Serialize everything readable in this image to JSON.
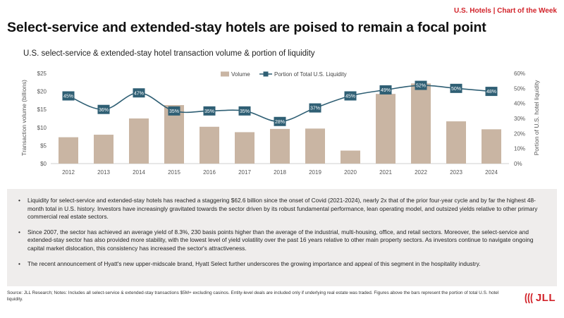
{
  "header": {
    "tagline": "U.S. Hotels | Chart of the Week",
    "title": "Select-service and extended-stay hotels are poised to remain a focal point"
  },
  "chart_data": {
    "type": "bar",
    "title": "U.S. select-service & extended-stay hotel transaction volume & portion of liquidity",
    "categories": [
      "2012",
      "2013",
      "2014",
      "2015",
      "2016",
      "2017",
      "2018",
      "2019",
      "2020",
      "2021",
      "2022",
      "2023",
      "2024"
    ],
    "series": [
      {
        "name": "Volume",
        "type": "bar",
        "axis": "left",
        "values": [
          7.3,
          8.0,
          12.5,
          16.2,
          10.2,
          8.7,
          9.6,
          9.7,
          3.6,
          19.3,
          22.2,
          11.7,
          9.5
        ]
      },
      {
        "name": "Portion of Total U.S. Liquidity",
        "type": "line",
        "axis": "right",
        "values": [
          45,
          36,
          47,
          35,
          35,
          35,
          28,
          37,
          45,
          49,
          52,
          50,
          48
        ],
        "labels": [
          "45%",
          "36%",
          "47%",
          "35%",
          "35%",
          "35%",
          "28%",
          "37%",
          "45%",
          "49%",
          "52%",
          "50%",
          "48%"
        ]
      }
    ],
    "ylabel": "Transaction volume (billions)",
    "y2label": "Portion of U.S. hotel liquidity",
    "ylim": [
      0,
      25
    ],
    "y2lim": [
      0,
      60
    ],
    "yticks": [
      "$0",
      "$5",
      "$10",
      "$15",
      "$20",
      "$25"
    ],
    "y2ticks": [
      "0%",
      "10%",
      "20%",
      "30%",
      "40%",
      "50%",
      "60%"
    ],
    "legend_position": "top-center",
    "colors": {
      "bar": "#c9b5a3",
      "line": "#2f5f74",
      "marker": "#2f5f74",
      "marker_text": "#ffffff",
      "axis_text": "#555555"
    }
  },
  "notes": [
    "Liquidity for select-service and extended-stay hotels has reached a staggering $62.6 billion since the onset of Covid (2021-2024), nearly 2x that of the prior four-year cycle and by far the highest 48-month total in U.S. history. Investors have increasingly gravitated towards the sector driven by its robust fundamental performance, lean operating model, and outsized yields relative to other primary commercial real estate sectors.",
    "Since 2007, the sector has achieved an average yield of 8.3%, 230 basis points higher than the average of the industrial, multi-housing, office, and retail sectors. Moreover, the select-service and extended-stay sector has also provided more stability, with the lowest level of yield volatility over the past 16 years relative to other main property sectors. As investors continue to navigate ongoing capital market dislocation, this consistency has increased the sector's attractiveness.",
    "The recent announcement of Hyatt's new upper-midscale brand, Hyatt Select further underscores the growing importance and appeal of this segment in the hospitality industry."
  ],
  "bullet": "•",
  "source": "Source: JLL Research; Notes: Includes all select-service & extended-stay transactions $5M+ excluding casinos. Entity-level deals are included only if underlying real estate was traded. Figures above the bars represent the portion of total U.S. hotel liquidity.",
  "logo": {
    "text": "JLL",
    "icon": "jll-logo-icon"
  }
}
